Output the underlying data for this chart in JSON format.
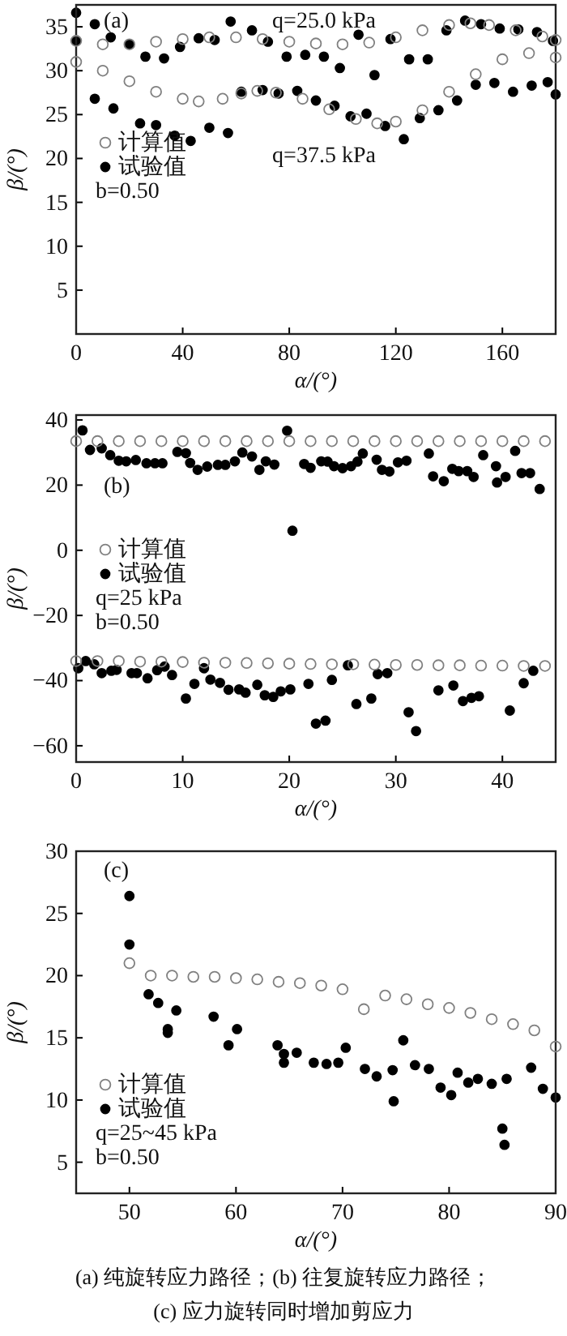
{
  "chart_data": [
    {
      "type": "scatter",
      "xlabel": "α/(°)",
      "ylabel": "β/(°)",
      "xlim": [
        0,
        180
      ],
      "ylim": [
        0,
        37.5
      ],
      "xticks": [
        0,
        40,
        80,
        120,
        160
      ],
      "yticks": [
        5,
        10,
        15,
        20,
        25,
        30,
        35
      ],
      "legend": "left",
      "marker": "circle",
      "grid": false,
      "annotations": [
        "(a)",
        "b=0.50",
        "q=25.0 kPa",
        "q=37.5 kPa"
      ],
      "series": [
        {
          "name": "计算值",
          "color": "#808080",
          "x": [
            0,
            10,
            20,
            30,
            40,
            50,
            60,
            70,
            80,
            90,
            100,
            110,
            120,
            130,
            140,
            148,
            155,
            165,
            175,
            180,
            0,
            10,
            20,
            30,
            40,
            46,
            55,
            62,
            68,
            75,
            85,
            95,
            105,
            113,
            120,
            130,
            140,
            150,
            160,
            170,
            180
          ],
          "values": [
            33.4,
            33.0,
            33.0,
            33.3,
            33.6,
            33.8,
            33.8,
            33.6,
            33.3,
            33.1,
            33.0,
            33.2,
            33.8,
            34.6,
            35.2,
            35.4,
            35.2,
            34.6,
            33.9,
            33.5,
            31.0,
            30.0,
            28.8,
            27.6,
            26.8,
            26.5,
            26.8,
            27.4,
            27.7,
            27.5,
            26.8,
            25.6,
            24.5,
            24.0,
            24.2,
            25.5,
            27.6,
            29.6,
            31.3,
            32.0,
            31.5
          ]
        },
        {
          "name": "试验值",
          "color": "#000000",
          "x": [
            0,
            0,
            7,
            13,
            20,
            26,
            33,
            39,
            46,
            52,
            58,
            66,
            72,
            79,
            86,
            93,
            99,
            106,
            112,
            118,
            125,
            132,
            139,
            146,
            152,
            159,
            166,
            173,
            179,
            7,
            14,
            24,
            30,
            37,
            43,
            50,
            57,
            62,
            70,
            76,
            83,
            90,
            97,
            103,
            109,
            116,
            123,
            129,
            136,
            143,
            150,
            157,
            164,
            171,
            177,
            180
          ],
          "values": [
            36.6,
            33.4,
            35.3,
            33.8,
            33.0,
            31.6,
            31.4,
            32.7,
            33.7,
            33.5,
            35.6,
            34.6,
            33.3,
            31.6,
            31.8,
            31.6,
            30.3,
            34.1,
            29.5,
            33.6,
            31.3,
            31.3,
            34.6,
            35.7,
            35.3,
            34.8,
            34.7,
            34.4,
            33.4,
            26.8,
            25.7,
            24.0,
            23.8,
            22.6,
            22.0,
            23.5,
            22.9,
            27.6,
            27.8,
            27.4,
            27.7,
            26.6,
            26.0,
            24.8,
            25.1,
            23.7,
            22.2,
            24.6,
            25.5,
            26.6,
            28.4,
            28.6,
            27.6,
            28.3,
            28.7,
            27.3
          ]
        }
      ]
    },
    {
      "type": "scatter",
      "xlabel": "α/(°)",
      "ylabel": "β/(°)",
      "xlim": [
        0,
        45
      ],
      "ylim": [
        -65,
        41.5
      ],
      "xticks": [
        0,
        10,
        20,
        30,
        40
      ],
      "yticks": [
        -60,
        -40,
        -20,
        0,
        20,
        40
      ],
      "legend": "left",
      "marker": "circle",
      "grid": false,
      "annotations": [
        "(b)",
        "q=25 kPa",
        "b=0.50"
      ],
      "series": [
        {
          "name": "计算值",
          "color": "#808080",
          "x": [
            0,
            2,
            4,
            6,
            8,
            10,
            12,
            14,
            16,
            18,
            20,
            22,
            24,
            26,
            28,
            30,
            32,
            34,
            36,
            38,
            40,
            42,
            44,
            0,
            2,
            4,
            6,
            8,
            10,
            12,
            14,
            16,
            18,
            20,
            22,
            24,
            26,
            28,
            30,
            32,
            34,
            36,
            38,
            40,
            42,
            44
          ],
          "values": [
            33.5,
            33.5,
            33.5,
            33.5,
            33.5,
            33.5,
            33.5,
            33.5,
            33.5,
            33.5,
            33.5,
            33.5,
            33.5,
            33.5,
            33.5,
            33.5,
            33.5,
            33.5,
            33.5,
            33.5,
            33.5,
            33.5,
            33.5,
            -34.0,
            -34.0,
            -34.0,
            -34.2,
            -34.2,
            -34.3,
            -34.5,
            -34.5,
            -34.6,
            -34.7,
            -34.8,
            -34.9,
            -35.0,
            -35.0,
            -35.1,
            -35.2,
            -35.2,
            -35.3,
            -35.3,
            -35.4,
            -35.4,
            -35.5,
            -35.5
          ]
        },
        {
          "name": "试验值",
          "color": "#000000",
          "x": [
            0.6,
            1.3,
            2.4,
            3.2,
            4,
            4.7,
            5.6,
            6.6,
            7.4,
            8.1,
            9.5,
            10.3,
            10.7,
            11.4,
            12.3,
            13.3,
            14,
            14.9,
            15.6,
            16.5,
            17.2,
            17.8,
            18.6,
            19.8,
            20.3,
            21.4,
            22,
            23,
            23.6,
            24.2,
            25,
            25.8,
            26.4,
            26.9,
            28.2,
            28.7,
            29.4,
            30.2,
            31,
            33.1,
            33.5,
            34.5,
            35.3,
            35.9,
            36.7,
            37.3,
            38.2,
            39.4,
            39.5,
            40.3,
            41.2,
            41.8,
            42.6,
            43.5,
            0.2,
            0.9,
            1.7,
            2.4,
            3.3,
            3.8,
            5.2,
            5.7,
            6.7,
            7.6,
            8.3,
            9,
            10.3,
            11.1,
            12,
            12.6,
            13.5,
            14.3,
            15.3,
            15.9,
            17,
            17.7,
            18.5,
            19.2,
            20.1,
            21.8,
            22.5,
            23.4,
            24,
            25.5,
            26.3,
            27.7,
            28.3,
            29.2,
            31.2,
            31.9,
            34,
            35.4,
            36.3,
            37.1,
            37.8,
            40.7,
            42,
            42.9
          ],
          "values": [
            36.8,
            30.8,
            31.3,
            29.2,
            27.5,
            27.3,
            27.7,
            26.7,
            26.7,
            26.7,
            30.2,
            29.8,
            26.8,
            24.7,
            25.7,
            26.2,
            26.2,
            27.3,
            30,
            28.8,
            24.7,
            27.3,
            26.3,
            36.7,
            6.0,
            26.5,
            25.3,
            27.3,
            27.2,
            25.8,
            25.2,
            25.8,
            27.2,
            29.7,
            27.8,
            24.7,
            24.2,
            27,
            27.5,
            29.7,
            22.7,
            21.2,
            25,
            24.3,
            24.3,
            22.5,
            29.2,
            25.8,
            20.8,
            22.5,
            30.5,
            23.7,
            23.7,
            18.8,
            -36.2,
            -34,
            -35,
            -37.7,
            -37,
            -36.7,
            -37.7,
            -37.7,
            -39.3,
            -36.8,
            -35.7,
            -38.3,
            -45.5,
            -41,
            -36.2,
            -39.7,
            -40.7,
            -42.8,
            -42.7,
            -43.7,
            -41.3,
            -44.5,
            -45,
            -43.3,
            -42.7,
            -41,
            -53.2,
            -52.3,
            -39.8,
            -35.3,
            -47.2,
            -45.5,
            -38,
            -37.7,
            -49.7,
            -55.5,
            -43,
            -41.5,
            -46.3,
            -45.3,
            -44.8,
            -49.2,
            -40.8,
            -37
          ]
        }
      ]
    },
    {
      "type": "scatter",
      "xlabel": "α/(°)",
      "ylabel": "β/(°)",
      "xlim": [
        45,
        90
      ],
      "ylim": [
        2.5,
        30
      ],
      "xticks": [
        50,
        60,
        70,
        80,
        90
      ],
      "yticks": [
        5,
        10,
        15,
        20,
        25,
        30
      ],
      "legend": "bottom left",
      "marker": "circle",
      "grid": false,
      "annotations": [
        "(c)",
        "q=25~45 kPa",
        "b=0.50",
        "(a) 纯旋转应力路径；(b) 往复旋转应力路径；",
        "(c) 应力旋转同时增加剪应力"
      ],
      "series": [
        {
          "name": "计算值",
          "color": "#808080",
          "x": [
            50,
            52,
            54,
            56,
            58,
            60,
            62,
            64,
            66,
            68,
            70,
            72,
            74,
            76,
            78,
            80,
            82,
            84,
            86,
            88,
            90
          ],
          "values": [
            21.0,
            20,
            20,
            19.9,
            19.9,
            19.8,
            19.7,
            19.5,
            19.4,
            19.2,
            18.9,
            17.3,
            18.4,
            18.1,
            17.7,
            17.4,
            17,
            16.5,
            16.1,
            15.6,
            14.3
          ]
        },
        {
          "name": "试验值",
          "color": "#000000",
          "x": [
            50,
            50,
            51.8,
            52.7,
            53.6,
            53.6,
            54.4,
            57.9,
            59.3,
            60.1,
            63.9,
            64.5,
            64.5,
            65.7,
            67.3,
            68.5,
            69.6,
            70.3,
            72.1,
            73.2,
            74.7,
            74.8,
            75.7,
            76.8,
            78.1,
            79.2,
            80.2,
            80.8,
            81.8,
            82.7,
            84,
            85,
            85.2,
            85.4,
            87.7,
            88.8,
            90
          ],
          "values": [
            26.4,
            22.5,
            18.5,
            17.8,
            15.4,
            15.7,
            17.2,
            16.7,
            14.4,
            15.7,
            14.4,
            13.7,
            13,
            13.8,
            13.0,
            12.9,
            13.0,
            14.2,
            12.5,
            11.9,
            12.4,
            9.9,
            14.8,
            12.8,
            12.5,
            11,
            10.4,
            12.2,
            11.4,
            11.7,
            11.3,
            7.7,
            6.4,
            11.7,
            12.6,
            10.9,
            10.2
          ]
        }
      ]
    }
  ]
}
